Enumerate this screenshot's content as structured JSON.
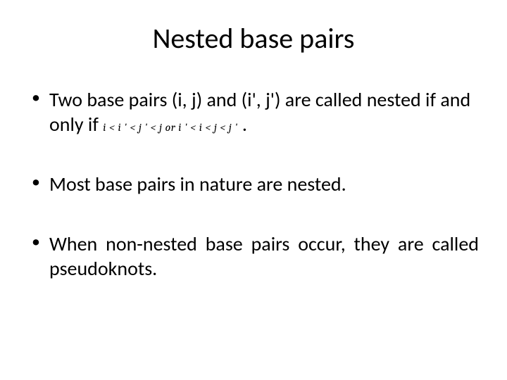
{
  "title": "Nested base pairs",
  "bullets": {
    "item1_part1": "Two base pairs (i, j) and (i', j') are called nested if and only if ",
    "item1_math": "i < i ' < j ' < j or i ' < i < j < j '",
    "item1_part2": " .",
    "item2": "Most base pairs in nature are nested.",
    "item3": "When non-nested base pairs occur, they are called pseudoknots."
  },
  "colors": {
    "background": "#ffffff",
    "text": "#000000"
  },
  "typography": {
    "title_fontsize": 40,
    "body_fontsize": 28,
    "math_fontsize": 16,
    "font_family": "Calibri"
  }
}
